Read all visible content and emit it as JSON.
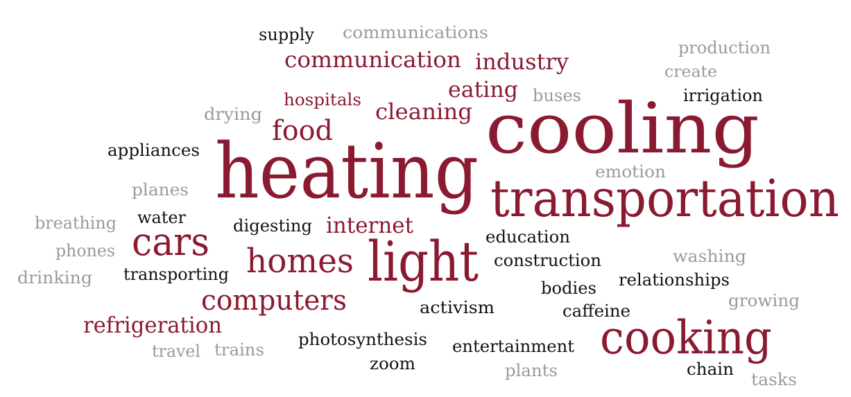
{
  "words": [
    "supply",
    "communications",
    "production",
    "communication",
    "industry",
    "create",
    "eating",
    "buses",
    "irrigation",
    "hospitals",
    "cleaning",
    "drying",
    "cooling",
    "food",
    "appliances",
    "heating",
    "emotion",
    "planes",
    "transportation",
    "breathing",
    "water",
    "digesting",
    "internet",
    "cars",
    "education",
    "phones",
    "homes",
    "light",
    "construction",
    "washing",
    "drinking",
    "transporting",
    "bodies",
    "relationships",
    "computers",
    "growing",
    "activism",
    "caffeine",
    "refrigeration",
    "cooking",
    "photosynthesis",
    "entertainment",
    "travel",
    "trains",
    "zoom",
    "chain",
    "plants",
    "tasks"
  ]
}
